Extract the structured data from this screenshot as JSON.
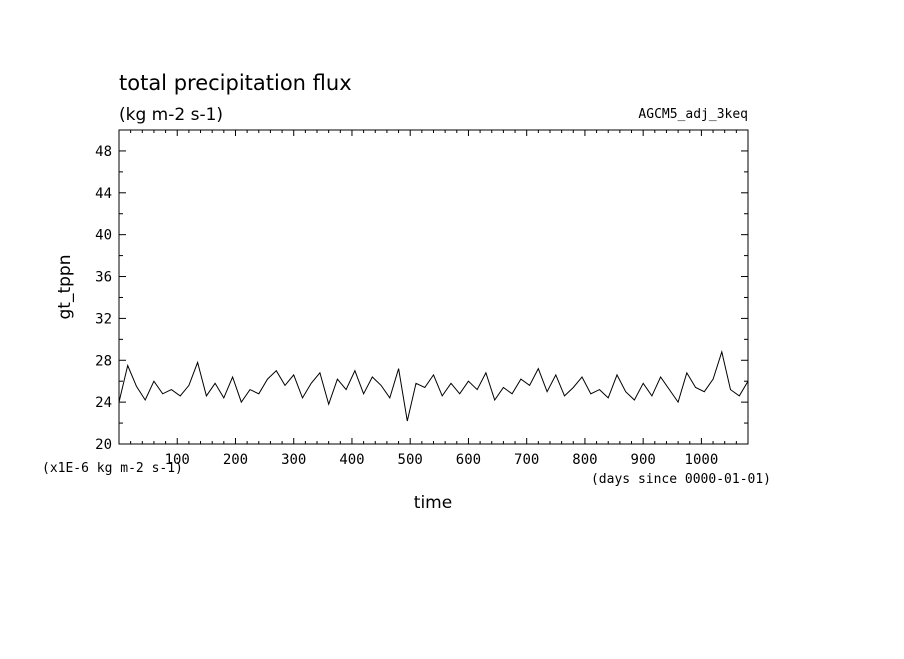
{
  "chart_data": {
    "type": "line",
    "title": "total precipitation flux",
    "subtitle": "(kg m-2 s-1)",
    "run_label": "AGCM5_adj_3keq",
    "xlabel": "time",
    "ylabel": "gt_tppn",
    "y_unit_note": "(x1E-6 kg m-2 s-1)",
    "x_unit_note": "(days since 0000-01-01)",
    "xlim": [
      0,
      1080
    ],
    "ylim": [
      20,
      50
    ],
    "x_ticks": [
      100,
      200,
      300,
      400,
      500,
      600,
      700,
      800,
      900,
      1000
    ],
    "y_ticks": [
      20,
      24,
      28,
      32,
      36,
      40,
      44,
      48
    ],
    "grid": false,
    "line_color": "#000000",
    "series": [
      {
        "x": [
          0,
          15,
          30,
          45,
          60,
          75,
          90,
          105,
          120,
          135,
          150,
          165,
          180,
          195,
          210,
          225,
          240,
          255,
          270,
          285,
          300,
          315,
          330,
          345,
          360,
          375,
          390,
          405,
          420,
          435,
          450,
          465,
          480,
          495,
          510,
          525,
          540,
          555,
          570,
          585,
          600,
          615,
          630,
          645,
          660,
          675,
          690,
          705,
          720,
          735,
          750,
          765,
          780,
          795,
          810,
          825,
          840,
          855,
          870,
          885,
          900,
          915,
          930,
          945,
          960,
          975,
          990,
          1005,
          1020,
          1035,
          1050,
          1065,
          1080
        ],
        "values": [
          24.0,
          27.5,
          25.5,
          24.2,
          26.0,
          24.8,
          25.2,
          24.6,
          25.6,
          27.8,
          24.6,
          25.8,
          24.4,
          26.4,
          24.0,
          25.2,
          24.8,
          26.2,
          27.0,
          25.6,
          26.6,
          24.4,
          25.8,
          26.8,
          23.8,
          26.2,
          25.2,
          27.0,
          24.8,
          26.4,
          25.6,
          24.4,
          27.2,
          22.2,
          25.8,
          25.4,
          26.6,
          24.6,
          25.8,
          24.8,
          26.0,
          25.2,
          26.8,
          24.2,
          25.4,
          24.8,
          26.2,
          25.6,
          27.2,
          25.0,
          26.6,
          24.6,
          25.4,
          26.4,
          24.8,
          25.2,
          24.4,
          26.6,
          25.0,
          24.2,
          25.8,
          24.6,
          26.4,
          25.2,
          24.0,
          26.8,
          25.4,
          25.0,
          26.2,
          28.8,
          25.2,
          24.6,
          26.0
        ]
      }
    ]
  }
}
